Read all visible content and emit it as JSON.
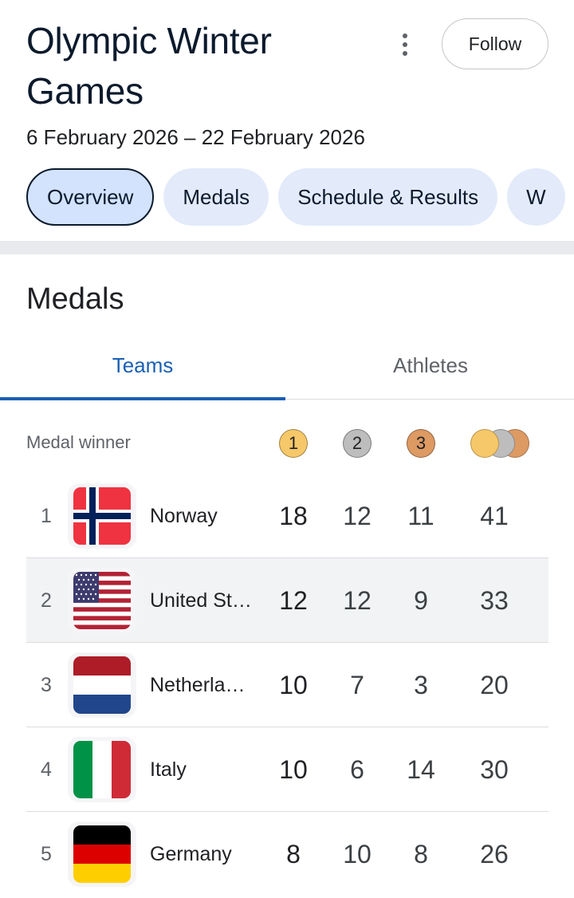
{
  "header": {
    "title": "Olympic Winter Games",
    "dates": "6 February 2026 – 22 February 2026",
    "follow_label": "Follow",
    "more_icon": "more-vertical-icon"
  },
  "chips": [
    {
      "label": "Overview",
      "active": true
    },
    {
      "label": "Medals",
      "active": false
    },
    {
      "label": "Schedule & Results",
      "active": false
    },
    {
      "label": "W",
      "active": false
    }
  ],
  "medals_section": {
    "title": "Medals",
    "tabs": {
      "teams": "Teams",
      "athletes": "Athletes"
    },
    "header_label": "Medal winner",
    "medal_icons": {
      "gold": "1",
      "silver": "2",
      "bronze": "3"
    },
    "colors": {
      "gold": "#f6c869",
      "silver": "#bdbdbd",
      "bronze": "#dd9a63",
      "accent": "#1a5fb4"
    },
    "rows": [
      {
        "rank": "1",
        "country": "Norway",
        "flag": "norway-flag-icon",
        "gold": "18",
        "silver": "12",
        "bronze": "11",
        "total": "41"
      },
      {
        "rank": "2",
        "country": "United St…",
        "flag": "united-states-flag-icon",
        "gold": "12",
        "silver": "12",
        "bronze": "9",
        "total": "33"
      },
      {
        "rank": "3",
        "country": "Netherla…",
        "flag": "netherlands-flag-icon",
        "gold": "10",
        "silver": "7",
        "bronze": "3",
        "total": "20"
      },
      {
        "rank": "4",
        "country": "Italy",
        "flag": "italy-flag-icon",
        "gold": "10",
        "silver": "6",
        "bronze": "14",
        "total": "30"
      },
      {
        "rank": "5",
        "country": "Germany",
        "flag": "germany-flag-icon",
        "gold": "8",
        "silver": "10",
        "bronze": "8",
        "total": "26"
      }
    ]
  }
}
